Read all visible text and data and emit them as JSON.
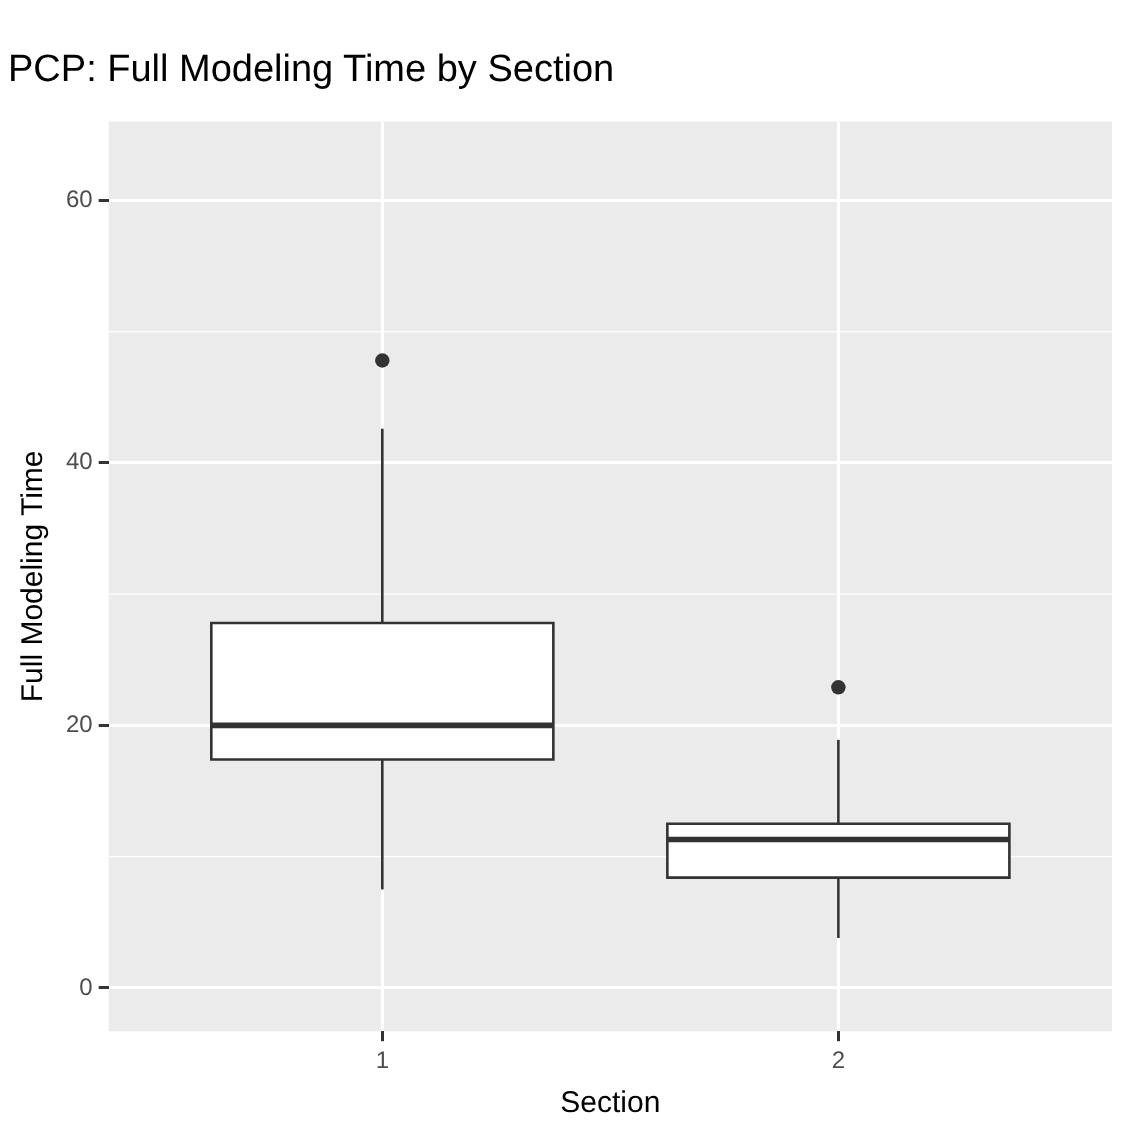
{
  "chart_data": {
    "type": "box",
    "title": "PCP: Full Modeling Time by Section",
    "xlabel": "Section",
    "ylabel": "Full Modeling Time",
    "categories": [
      "1",
      "2"
    ],
    "boxes": [
      {
        "low": 7.5,
        "q1": 17.4,
        "median": 20.0,
        "q3": 27.8,
        "high": 42.6,
        "outliers": [
          47.8
        ]
      },
      {
        "low": 3.8,
        "q1": 8.4,
        "median": 11.3,
        "q3": 12.5,
        "high": 18.9,
        "outliers": [
          22.9
        ]
      }
    ],
    "ylim": [
      -3.3,
      66
    ],
    "yticks": [
      0,
      20,
      40,
      60
    ],
    "grid": true
  }
}
